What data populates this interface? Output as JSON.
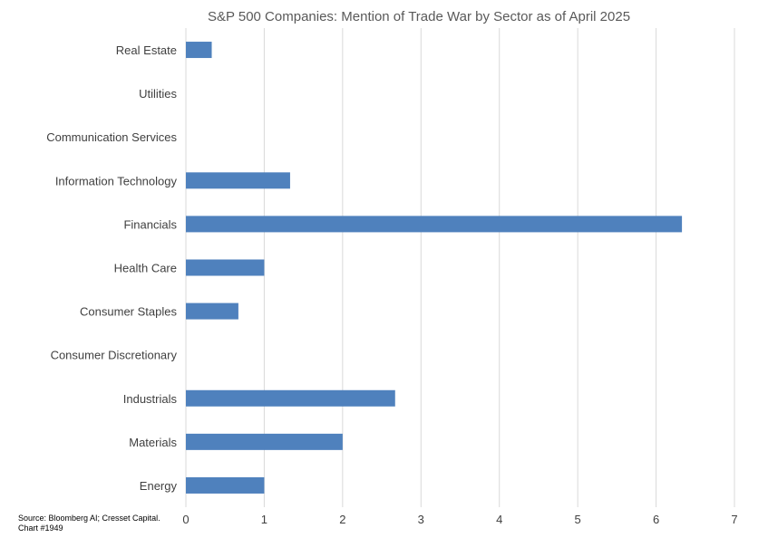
{
  "chart_data": {
    "type": "bar",
    "orientation": "horizontal",
    "title": "S&P 500 Companies: Mention of Trade War by Sector as of April 2025",
    "xlabel": "",
    "ylabel": "",
    "xlim": [
      0,
      7
    ],
    "ticks": [
      "0",
      "1",
      "2",
      "3",
      "4",
      "5",
      "6",
      "7"
    ],
    "grid": "vertical",
    "categories": [
      "Real Estate",
      "Utilities",
      "Communication Services",
      "Information Technology",
      "Financials",
      "Health Care",
      "Consumer Staples",
      "Consumer Discretionary",
      "Industrials",
      "Materials",
      "Energy"
    ],
    "values": [
      0.33,
      0,
      0,
      1.33,
      6.33,
      1.0,
      0.67,
      0,
      2.67,
      2.0,
      1.0
    ],
    "bar_color": "#4f81bd"
  },
  "source": {
    "line1": "Source: Bloomberg AI; Cresset Capital.",
    "line2": "Chart #1949"
  }
}
